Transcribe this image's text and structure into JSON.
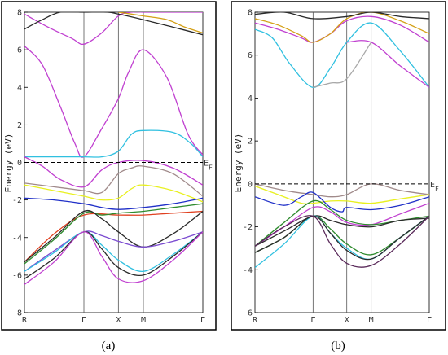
{
  "chart_data": [
    {
      "type": "line",
      "panel_label": "(a)",
      "ylabel": "Energy (eV)",
      "fermi_label": "E",
      "fermi_sub": "F",
      "fermi_level": 0,
      "ylim": [
        -8,
        8
      ],
      "yticks": [
        -8,
        -6,
        -4,
        -2,
        0,
        2,
        4,
        6,
        8
      ],
      "ytick_labels": [
        "-8",
        "-6",
        "-4",
        "-2",
        "0",
        "2",
        "4",
        "6",
        "8"
      ],
      "kpoints": [
        {
          "label": "R",
          "pos": 0
        },
        {
          "label": "Γ",
          "pos": 1
        },
        {
          "label": "X",
          "pos": 1.58
        },
        {
          "label": "M",
          "pos": 2.0
        },
        {
          "label": "Γ",
          "pos": 3.0
        }
      ],
      "series": [
        {
          "color": "#c040d0",
          "x": [
            0,
            0.3,
            0.6,
            0.85,
            1.0,
            1.3,
            1.58,
            1.75,
            2.0,
            2.4,
            2.75,
            3.0
          ],
          "y": [
            6.2,
            5.2,
            3.0,
            1.0,
            0.3,
            1.8,
            3.4,
            4.8,
            6.0,
            4.5,
            1.5,
            0.4
          ]
        },
        {
          "color": "#c040d0",
          "x": [
            0,
            0.4,
            0.8,
            1.0,
            1.3,
            1.58,
            1.8,
            2.0,
            2.5,
            3.0
          ],
          "y": [
            7.9,
            7.2,
            6.6,
            6.3,
            6.9,
            7.8,
            8.0,
            8.0,
            8.0,
            8.0
          ]
        },
        {
          "color": "#2a2a2a",
          "x": [
            0,
            0.3,
            0.6,
            1.0,
            1.4,
            1.58,
            2.0,
            2.5,
            3.0
          ],
          "y": [
            7.1,
            7.6,
            8.0,
            8.0,
            8.0,
            7.9,
            7.6,
            7.2,
            6.8
          ]
        },
        {
          "color": "#d4a017",
          "x": [
            1.58,
            1.8,
            2.0,
            2.4,
            2.7,
            3.0
          ],
          "y": [
            8.0,
            7.9,
            7.8,
            7.6,
            7.2,
            6.9
          ]
        },
        {
          "color": "#30c0e0",
          "x": [
            0,
            0.5,
            1.0,
            1.3,
            1.58,
            1.8,
            2.0,
            2.5,
            2.8,
            3.0
          ],
          "y": [
            0.3,
            0.3,
            0.3,
            0.3,
            0.6,
            1.5,
            1.7,
            1.6,
            1.0,
            0.3
          ]
        },
        {
          "color": "#c040d0",
          "x": [
            0,
            0.3,
            0.6,
            1.0,
            1.3,
            1.58,
            2.0,
            2.5,
            3.0
          ],
          "y": [
            0.3,
            -0.2,
            -0.9,
            -1.3,
            -0.4,
            0.0,
            0.1,
            -0.3,
            -1.2
          ]
        },
        {
          "color": "#a08a8a",
          "x": [
            0,
            0.5,
            1.0,
            1.3,
            1.58,
            1.8,
            2.0,
            2.5,
            3.0
          ],
          "y": [
            -1.1,
            -1.3,
            -1.5,
            -1.6,
            -0.6,
            -0.3,
            -0.2,
            -0.6,
            -1.8
          ]
        },
        {
          "color": "#e8f020",
          "x": [
            0,
            0.5,
            1.0,
            1.3,
            1.58,
            1.8,
            2.0,
            2.5,
            3.0
          ],
          "y": [
            -1.2,
            -1.5,
            -1.8,
            -2.0,
            -1.9,
            -1.4,
            -1.2,
            -1.5,
            -2.1
          ]
        },
        {
          "color": "#2030c8",
          "x": [
            0,
            0.5,
            1.0,
            1.3,
            1.58,
            2.0,
            2.5,
            3.0
          ],
          "y": [
            -1.9,
            -2.0,
            -2.2,
            -2.4,
            -2.5,
            -2.4,
            -2.2,
            -1.9
          ]
        },
        {
          "color": "#e04020",
          "x": [
            0,
            0.5,
            1.0,
            1.58,
            2.0,
            2.5,
            3.0
          ],
          "y": [
            -5.3,
            -3.8,
            -2.8,
            -2.8,
            -2.8,
            -2.7,
            -2.6
          ]
        },
        {
          "color": "#2e8b2e",
          "x": [
            0,
            0.5,
            1.0,
            1.3,
            1.58,
            2.0,
            2.5,
            3.0
          ],
          "y": [
            -5.4,
            -4.1,
            -2.7,
            -2.8,
            -2.7,
            -2.6,
            -2.4,
            -2.2
          ]
        },
        {
          "color": "#2a2a2a",
          "x": [
            0,
            0.5,
            1.0,
            1.3,
            1.58,
            2.0,
            2.5,
            3.0
          ],
          "y": [
            -5.3,
            -4.0,
            -2.6,
            -3.0,
            -3.7,
            -4.5,
            -3.8,
            -2.6
          ]
        },
        {
          "color": "#7a4ad0",
          "x": [
            0,
            0.5,
            1.0,
            1.3,
            1.58,
            2.0,
            2.5,
            3.0
          ],
          "y": [
            -5.8,
            -4.7,
            -3.7,
            -3.9,
            -4.2,
            -4.5,
            -4.2,
            -3.7
          ]
        },
        {
          "color": "#30c0e0",
          "x": [
            0,
            0.5,
            1.0,
            1.3,
            1.58,
            2.0,
            2.5,
            3.0
          ],
          "y": [
            -5.8,
            -4.8,
            -3.7,
            -4.4,
            -5.2,
            -5.8,
            -4.9,
            -3.7
          ]
        },
        {
          "color": "#2a2a2a",
          "x": [
            0,
            0.5,
            1.0,
            1.3,
            1.58,
            2.0,
            2.5,
            3.0
          ],
          "y": [
            -6.2,
            -5.1,
            -3.7,
            -4.6,
            -5.6,
            -6.0,
            -5.0,
            -3.7
          ]
        },
        {
          "color": "#c040d0",
          "x": [
            0,
            0.5,
            1.0,
            1.3,
            1.58,
            2.0,
            2.5,
            3.0
          ],
          "y": [
            -6.5,
            -5.3,
            -3.7,
            -5.0,
            -6.2,
            -6.3,
            -5.2,
            -3.7
          ]
        }
      ]
    },
    {
      "type": "line",
      "panel_label": "(b)",
      "ylabel": "Energy (eV)",
      "fermi_label": "E",
      "fermi_sub": "F",
      "fermi_level": 0,
      "ylim": [
        -6,
        8
      ],
      "yticks": [
        -6,
        -4,
        -2,
        0,
        2,
        4,
        6,
        8
      ],
      "ytick_labels": [
        "-6",
        "-4",
        "-2",
        "0",
        "2",
        "4",
        "6",
        "8"
      ],
      "kpoints": [
        {
          "label": "R",
          "pos": 0
        },
        {
          "label": "Γ",
          "pos": 1
        },
        {
          "label": "X",
          "pos": 1.58
        },
        {
          "label": "M",
          "pos": 2.0
        },
        {
          "label": "Γ",
          "pos": 3.0
        }
      ],
      "series": [
        {
          "color": "#30c0e0",
          "x": [
            0,
            0.3,
            0.6,
            1.0,
            1.3,
            1.58,
            2.0,
            2.5,
            3.0
          ],
          "y": [
            7.2,
            6.8,
            5.6,
            4.5,
            5.4,
            6.6,
            7.5,
            6.2,
            4.5
          ]
        },
        {
          "color": "#c040d0",
          "x": [
            0,
            0.4,
            0.8,
            1.0,
            1.3,
            1.58,
            2.0,
            2.5,
            3.0
          ],
          "y": [
            7.5,
            7.2,
            6.8,
            6.6,
            7.0,
            7.6,
            7.8,
            7.4,
            6.6
          ]
        },
        {
          "color": "#d4a017",
          "x": [
            0,
            0.4,
            0.8,
            1.0,
            1.3,
            1.58,
            2.0,
            2.5,
            3.0
          ],
          "y": [
            7.7,
            7.4,
            6.9,
            6.6,
            7.0,
            7.7,
            8.0,
            7.6,
            7.0
          ]
        },
        {
          "color": "#c040d0",
          "x": [
            1.58,
            2.0,
            2.5,
            3.0
          ],
          "y": [
            6.6,
            6.6,
            5.5,
            4.5
          ]
        },
        {
          "color": "#a8a8a8",
          "x": [
            1.0,
            1.3,
            1.58,
            2.0
          ],
          "y": [
            4.5,
            4.7,
            4.9,
            6.6
          ]
        },
        {
          "color": "#2a2a2a",
          "x": [
            0,
            0.5,
            1.0,
            1.58,
            2.0,
            2.5,
            3.0
          ],
          "y": [
            7.9,
            8.0,
            7.7,
            7.8,
            8.0,
            7.8,
            7.7
          ]
        },
        {
          "color": "#a08a8a",
          "x": [
            0,
            0.5,
            1.0,
            1.3,
            1.58,
            2.0,
            2.5,
            3.0
          ],
          "y": [
            0.0,
            -0.3,
            -0.5,
            -0.6,
            -0.5,
            0.0,
            -0.3,
            -0.5
          ]
        },
        {
          "color": "#e8f020",
          "x": [
            0,
            0.4,
            0.8,
            1.0,
            1.3,
            1.58,
            2.0,
            2.5,
            3.0
          ],
          "y": [
            -0.1,
            -0.5,
            -0.9,
            -0.9,
            -0.8,
            -0.8,
            -0.9,
            -0.7,
            -0.5
          ]
        },
        {
          "color": "#2030c8",
          "x": [
            0,
            0.5,
            0.8,
            1.0,
            1.3,
            1.5,
            1.58,
            2.0,
            2.5,
            3.0
          ],
          "y": [
            -0.6,
            -1.0,
            -0.6,
            -0.4,
            -1.1,
            -1.3,
            -1.1,
            -1.2,
            -1.0,
            -0.6
          ]
        },
        {
          "color": "#c040d0",
          "x": [
            0,
            0.5,
            1.0,
            1.3,
            1.58,
            2.0,
            2.5,
            3.0
          ],
          "y": [
            -2.9,
            -2.0,
            -1.1,
            -1.3,
            -1.8,
            -1.9,
            -1.4,
            -0.9
          ]
        },
        {
          "color": "#2e8b2e",
          "x": [
            0,
            0.5,
            1.0,
            1.3,
            1.58,
            2.0,
            2.5,
            3.0
          ],
          "y": [
            -2.9,
            -1.8,
            -0.8,
            -1.2,
            -1.7,
            -1.9,
            -1.7,
            -1.5
          ]
        },
        {
          "color": "#2a2a2a",
          "x": [
            0,
            0.5,
            1.0,
            1.3,
            1.58,
            2.0,
            2.5,
            3.0
          ],
          "y": [
            -2.9,
            -2.2,
            -1.5,
            -1.7,
            -1.9,
            -2.0,
            -1.7,
            -1.6
          ]
        },
        {
          "color": "#2e8b2e",
          "x": [
            0,
            0.5,
            1.0,
            1.3,
            1.58,
            2.0,
            2.5,
            3.0
          ],
          "y": [
            -3.2,
            -2.5,
            -1.5,
            -2.1,
            -2.8,
            -3.3,
            -2.5,
            -1.5
          ]
        },
        {
          "color": "#30c0e0",
          "x": [
            0,
            0.5,
            1.0,
            1.3,
            1.58,
            2.0,
            2.5,
            3.0
          ],
          "y": [
            -3.9,
            -2.8,
            -1.5,
            -2.3,
            -3.0,
            -3.5,
            -2.5,
            -1.5
          ]
        },
        {
          "color": "#2a2a2a",
          "x": [
            0,
            0.5,
            1.0,
            1.3,
            1.58,
            2.0,
            2.5,
            3.0
          ],
          "y": [
            -3.2,
            -2.5,
            -1.5,
            -2.3,
            -3.1,
            -3.5,
            -2.5,
            -1.5
          ]
        },
        {
          "color": "#5a2a5a",
          "x": [
            0,
            0.5,
            1.0,
            1.3,
            1.58,
            2.0,
            2.5,
            3.0
          ],
          "y": [
            -2.9,
            -2.0,
            -1.5,
            -2.8,
            -3.7,
            -3.8,
            -2.8,
            -1.5
          ]
        }
      ]
    }
  ]
}
